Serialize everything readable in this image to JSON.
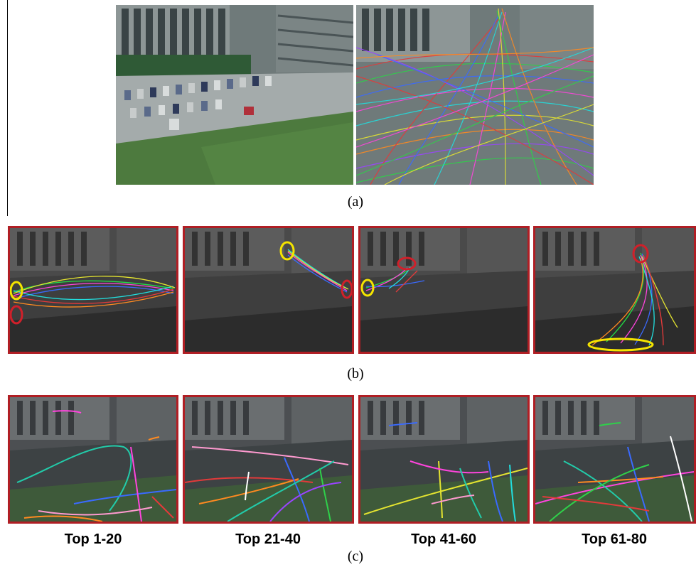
{
  "captions": {
    "a": "(a)",
    "b": "(b)",
    "c": "(c)"
  },
  "row_c_labels": [
    "Top 1-20",
    "Top 21-40",
    "Top 41-60",
    "Top 61-80"
  ],
  "colors": {
    "frame": "#b01e24",
    "marker_red": "#d0202a",
    "marker_yellow": "#f5e400"
  }
}
